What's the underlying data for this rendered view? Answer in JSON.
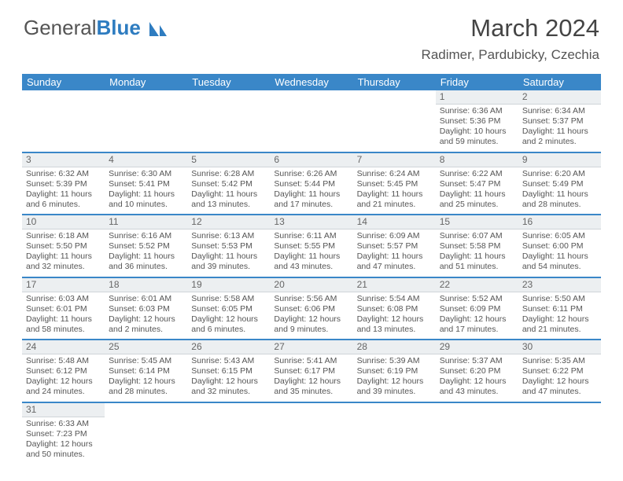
{
  "brand": {
    "part1": "General",
    "part2": "Blue"
  },
  "title": "March 2024",
  "subtitle": "Radimer, Pardubicky, Czechia",
  "colors": {
    "header_bg": "#3a87c8",
    "header_text": "#ffffff",
    "daynum_bg": "#eceff1",
    "daynum_border": "#cfd4d8",
    "row_border": "#3a87c8",
    "text": "#555555"
  },
  "day_headers": [
    "Sunday",
    "Monday",
    "Tuesday",
    "Wednesday",
    "Thursday",
    "Friday",
    "Saturday"
  ],
  "weeks": [
    [
      null,
      null,
      null,
      null,
      null,
      {
        "n": "1",
        "sr": "Sunrise: 6:36 AM",
        "ss": "Sunset: 5:36 PM",
        "dl": "Daylight: 10 hours and 59 minutes."
      },
      {
        "n": "2",
        "sr": "Sunrise: 6:34 AM",
        "ss": "Sunset: 5:37 PM",
        "dl": "Daylight: 11 hours and 2 minutes."
      }
    ],
    [
      {
        "n": "3",
        "sr": "Sunrise: 6:32 AM",
        "ss": "Sunset: 5:39 PM",
        "dl": "Daylight: 11 hours and 6 minutes."
      },
      {
        "n": "4",
        "sr": "Sunrise: 6:30 AM",
        "ss": "Sunset: 5:41 PM",
        "dl": "Daylight: 11 hours and 10 minutes."
      },
      {
        "n": "5",
        "sr": "Sunrise: 6:28 AM",
        "ss": "Sunset: 5:42 PM",
        "dl": "Daylight: 11 hours and 13 minutes."
      },
      {
        "n": "6",
        "sr": "Sunrise: 6:26 AM",
        "ss": "Sunset: 5:44 PM",
        "dl": "Daylight: 11 hours and 17 minutes."
      },
      {
        "n": "7",
        "sr": "Sunrise: 6:24 AM",
        "ss": "Sunset: 5:45 PM",
        "dl": "Daylight: 11 hours and 21 minutes."
      },
      {
        "n": "8",
        "sr": "Sunrise: 6:22 AM",
        "ss": "Sunset: 5:47 PM",
        "dl": "Daylight: 11 hours and 25 minutes."
      },
      {
        "n": "9",
        "sr": "Sunrise: 6:20 AM",
        "ss": "Sunset: 5:49 PM",
        "dl": "Daylight: 11 hours and 28 minutes."
      }
    ],
    [
      {
        "n": "10",
        "sr": "Sunrise: 6:18 AM",
        "ss": "Sunset: 5:50 PM",
        "dl": "Daylight: 11 hours and 32 minutes."
      },
      {
        "n": "11",
        "sr": "Sunrise: 6:16 AM",
        "ss": "Sunset: 5:52 PM",
        "dl": "Daylight: 11 hours and 36 minutes."
      },
      {
        "n": "12",
        "sr": "Sunrise: 6:13 AM",
        "ss": "Sunset: 5:53 PM",
        "dl": "Daylight: 11 hours and 39 minutes."
      },
      {
        "n": "13",
        "sr": "Sunrise: 6:11 AM",
        "ss": "Sunset: 5:55 PM",
        "dl": "Daylight: 11 hours and 43 minutes."
      },
      {
        "n": "14",
        "sr": "Sunrise: 6:09 AM",
        "ss": "Sunset: 5:57 PM",
        "dl": "Daylight: 11 hours and 47 minutes."
      },
      {
        "n": "15",
        "sr": "Sunrise: 6:07 AM",
        "ss": "Sunset: 5:58 PM",
        "dl": "Daylight: 11 hours and 51 minutes."
      },
      {
        "n": "16",
        "sr": "Sunrise: 6:05 AM",
        "ss": "Sunset: 6:00 PM",
        "dl": "Daylight: 11 hours and 54 minutes."
      }
    ],
    [
      {
        "n": "17",
        "sr": "Sunrise: 6:03 AM",
        "ss": "Sunset: 6:01 PM",
        "dl": "Daylight: 11 hours and 58 minutes."
      },
      {
        "n": "18",
        "sr": "Sunrise: 6:01 AM",
        "ss": "Sunset: 6:03 PM",
        "dl": "Daylight: 12 hours and 2 minutes."
      },
      {
        "n": "19",
        "sr": "Sunrise: 5:58 AM",
        "ss": "Sunset: 6:05 PM",
        "dl": "Daylight: 12 hours and 6 minutes."
      },
      {
        "n": "20",
        "sr": "Sunrise: 5:56 AM",
        "ss": "Sunset: 6:06 PM",
        "dl": "Daylight: 12 hours and 9 minutes."
      },
      {
        "n": "21",
        "sr": "Sunrise: 5:54 AM",
        "ss": "Sunset: 6:08 PM",
        "dl": "Daylight: 12 hours and 13 minutes."
      },
      {
        "n": "22",
        "sr": "Sunrise: 5:52 AM",
        "ss": "Sunset: 6:09 PM",
        "dl": "Daylight: 12 hours and 17 minutes."
      },
      {
        "n": "23",
        "sr": "Sunrise: 5:50 AM",
        "ss": "Sunset: 6:11 PM",
        "dl": "Daylight: 12 hours and 21 minutes."
      }
    ],
    [
      {
        "n": "24",
        "sr": "Sunrise: 5:48 AM",
        "ss": "Sunset: 6:12 PM",
        "dl": "Daylight: 12 hours and 24 minutes."
      },
      {
        "n": "25",
        "sr": "Sunrise: 5:45 AM",
        "ss": "Sunset: 6:14 PM",
        "dl": "Daylight: 12 hours and 28 minutes."
      },
      {
        "n": "26",
        "sr": "Sunrise: 5:43 AM",
        "ss": "Sunset: 6:15 PM",
        "dl": "Daylight: 12 hours and 32 minutes."
      },
      {
        "n": "27",
        "sr": "Sunrise: 5:41 AM",
        "ss": "Sunset: 6:17 PM",
        "dl": "Daylight: 12 hours and 35 minutes."
      },
      {
        "n": "28",
        "sr": "Sunrise: 5:39 AM",
        "ss": "Sunset: 6:19 PM",
        "dl": "Daylight: 12 hours and 39 minutes."
      },
      {
        "n": "29",
        "sr": "Sunrise: 5:37 AM",
        "ss": "Sunset: 6:20 PM",
        "dl": "Daylight: 12 hours and 43 minutes."
      },
      {
        "n": "30",
        "sr": "Sunrise: 5:35 AM",
        "ss": "Sunset: 6:22 PM",
        "dl": "Daylight: 12 hours and 47 minutes."
      }
    ],
    [
      {
        "n": "31",
        "sr": "Sunrise: 6:33 AM",
        "ss": "Sunset: 7:23 PM",
        "dl": "Daylight: 12 hours and 50 minutes."
      },
      null,
      null,
      null,
      null,
      null,
      null
    ]
  ]
}
